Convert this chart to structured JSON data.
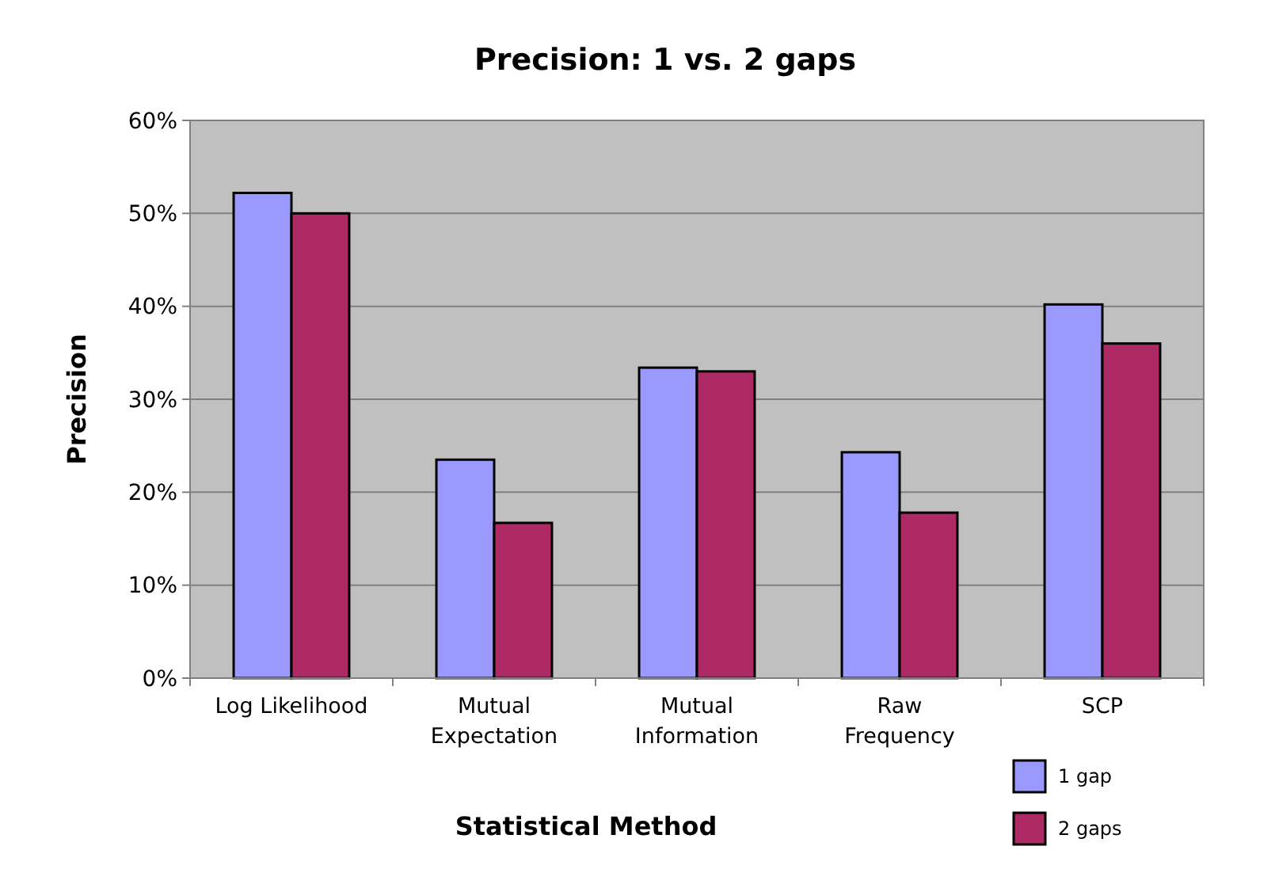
{
  "chart_data": {
    "type": "bar",
    "title": "Precision: 1 vs. 2 gaps",
    "xlabel": "Statistical Method",
    "ylabel": "Precision",
    "categories": [
      "Log Likelihood",
      "Mutual\nExpectation",
      "Mutual\nInformation",
      "Raw\nFrequency",
      "SCP"
    ],
    "series": [
      {
        "name": "1 gap",
        "color": "#9999ff",
        "values": [
          52.2,
          23.5,
          33.4,
          24.3,
          40.2
        ]
      },
      {
        "name": "2 gaps",
        "color": "#ae2a64",
        "values": [
          50,
          16.7,
          33,
          17.8,
          36
        ]
      }
    ],
    "ylim": [
      0,
      60
    ],
    "yticks": [
      {
        "value": 0,
        "label": "0%"
      },
      {
        "value": 10,
        "label": "10%"
      },
      {
        "value": 20,
        "label": "20%"
      },
      {
        "value": 30,
        "label": "30%"
      },
      {
        "value": 40,
        "label": "40%"
      },
      {
        "value": 50,
        "label": "50%"
      },
      {
        "value": 60,
        "label": "60%"
      }
    ],
    "grid": "y",
    "legend": "bottom right"
  }
}
